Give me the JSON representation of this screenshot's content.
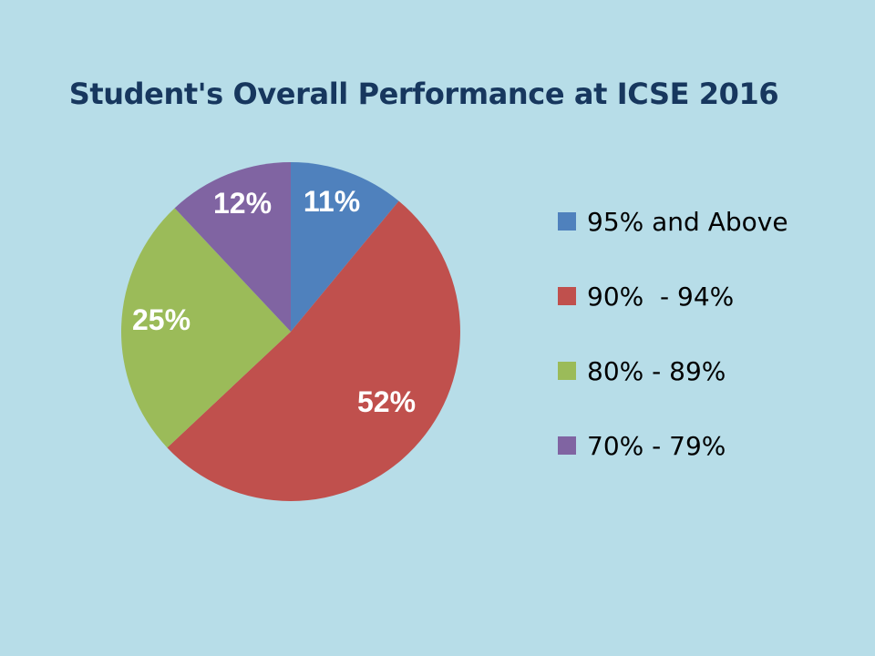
{
  "chart_data": {
    "type": "pie",
    "title": "Student's Overall Performance at ICSE 2016",
    "categories": [
      "95% and Above",
      "90%  - 94%",
      "80% - 89%",
      "70% - 79%"
    ],
    "values": [
      11,
      52,
      25,
      12
    ],
    "data_labels": [
      "11%",
      "52%",
      "25%",
      "12%"
    ],
    "colors": [
      "#4f81bd",
      "#c0504d",
      "#9bbb59",
      "#8064a2"
    ],
    "start_angle": "12 o'clock",
    "direction": "clockwise",
    "legend_position": "right"
  }
}
